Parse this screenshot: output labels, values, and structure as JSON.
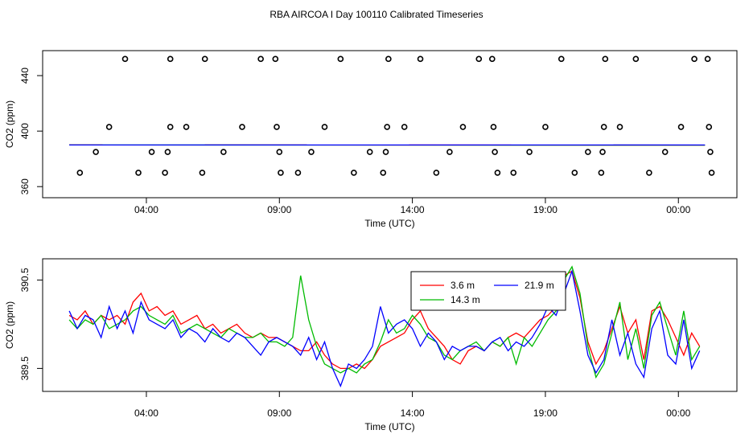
{
  "title": "RBA AIRCOA I  Day 100110  Calibrated Timeseries",
  "colors": {
    "red": "#ff0000",
    "green": "#00bb00",
    "blue": "#0000ff",
    "black": "#000000"
  },
  "chart_data": [
    {
      "type": "scatter",
      "id": "top",
      "xlabel": "Time (UTC)",
      "ylabel": "CO2 (ppm)",
      "xlim": [
        -0.9,
        25.2
      ],
      "ylim": [
        352,
        458
      ],
      "xticks": [
        3,
        8,
        13,
        18,
        23
      ],
      "xtick_labels": [
        "04:00",
        "09:00",
        "14:00",
        "19:00",
        "00:00"
      ],
      "yticks": [
        360,
        400,
        440
      ],
      "ytick_labels": [
        "360",
        "400",
        "440"
      ],
      "grid": false,
      "calibration_points": [
        [
          0.5,
          370
        ],
        [
          1.1,
          385
        ],
        [
          1.6,
          403
        ],
        [
          2.2,
          452
        ],
        [
          2.7,
          370
        ],
        [
          3.2,
          385
        ],
        [
          3.7,
          370
        ],
        [
          3.8,
          385
        ],
        [
          3.9,
          403
        ],
        [
          3.9,
          452
        ],
        [
          4.5,
          403
        ],
        [
          5.1,
          370
        ],
        [
          5.2,
          452
        ],
        [
          5.9,
          385
        ],
        [
          6.6,
          403
        ],
        [
          7.3,
          452
        ],
        [
          7.85,
          452
        ],
        [
          7.9,
          403
        ],
        [
          8.0,
          385
        ],
        [
          8.05,
          370
        ],
        [
          8.7,
          370
        ],
        [
          9.2,
          385
        ],
        [
          9.7,
          403
        ],
        [
          10.3,
          452
        ],
        [
          10.8,
          370
        ],
        [
          11.4,
          385
        ],
        [
          11.9,
          370
        ],
        [
          12.0,
          385
        ],
        [
          12.05,
          403
        ],
        [
          12.1,
          452
        ],
        [
          12.7,
          403
        ],
        [
          13.3,
          452
        ],
        [
          13.9,
          370
        ],
        [
          14.4,
          385
        ],
        [
          14.9,
          403
        ],
        [
          15.5,
          452
        ],
        [
          16.0,
          452
        ],
        [
          16.05,
          403
        ],
        [
          16.1,
          385
        ],
        [
          16.2,
          370
        ],
        [
          16.8,
          370
        ],
        [
          17.4,
          385
        ],
        [
          18.0,
          403
        ],
        [
          18.6,
          452
        ],
        [
          19.1,
          370
        ],
        [
          19.6,
          385
        ],
        [
          20.1,
          370
        ],
        [
          20.15,
          385
        ],
        [
          20.2,
          403
        ],
        [
          20.25,
          452
        ],
        [
          20.8,
          403
        ],
        [
          21.4,
          452
        ],
        [
          21.9,
          370
        ],
        [
          22.5,
          385
        ],
        [
          23.1,
          403
        ],
        [
          23.6,
          452
        ],
        [
          24.1,
          452
        ],
        [
          24.15,
          403
        ],
        [
          24.2,
          385
        ],
        [
          24.25,
          370
        ]
      ],
      "series": [
        {
          "name": "3.6 m",
          "color": "#ff0000",
          "x": [
            0.1,
            24.0
          ],
          "y": [
            390.1,
            389.9
          ]
        },
        {
          "name": "14.3 m",
          "color": "#00bb00",
          "x": [
            0.1,
            24.0
          ],
          "y": [
            390.0,
            389.9
          ]
        },
        {
          "name": "21.9 m",
          "color": "#0000ff",
          "x": [
            0.1,
            24.0
          ],
          "y": [
            390.0,
            390.0
          ]
        }
      ]
    },
    {
      "type": "line",
      "id": "bottom",
      "xlabel": "Time (UTC)",
      "ylabel": "CO2 (ppm)",
      "xlim": [
        -0.9,
        25.2
      ],
      "ylim": [
        389.24,
        390.74
      ],
      "xticks": [
        3,
        8,
        13,
        18,
        23
      ],
      "xtick_labels": [
        "04:00",
        "09:00",
        "14:00",
        "19:00",
        "00:00"
      ],
      "yticks": [
        389.5,
        390.5
      ],
      "ytick_labels": [
        "389.5",
        "390.5"
      ],
      "grid": false,
      "legend": {
        "position": "top-center",
        "entries": [
          "3.6 m",
          "14.3 m",
          "21.9 m"
        ]
      },
      "series": [
        {
          "name": "3.6 m",
          "color": "#ff0000",
          "x": [
            0.1,
            0.4,
            0.7,
            1.0,
            1.3,
            1.6,
            1.9,
            2.2,
            2.5,
            2.8,
            3.1,
            3.4,
            3.7,
            4.0,
            4.3,
            4.6,
            4.9,
            5.2,
            5.5,
            5.8,
            6.1,
            6.4,
            6.7,
            7.0,
            7.3,
            7.6,
            7.9,
            8.2,
            8.5,
            8.8,
            9.1,
            9.4,
            9.7,
            10.0,
            10.3,
            10.6,
            10.9,
            11.2,
            11.5,
            11.8,
            12.1,
            12.4,
            12.7,
            13.0,
            13.3,
            13.6,
            13.9,
            14.2,
            14.5,
            14.8,
            15.1,
            15.4,
            15.7,
            16.0,
            16.3,
            16.6,
            16.9,
            17.2,
            17.5,
            17.8,
            18.1,
            18.4,
            18.7,
            19.0,
            19.3,
            19.6,
            19.9,
            20.2,
            20.5,
            20.8,
            21.1,
            21.4,
            21.7,
            22.0,
            22.3,
            22.6,
            22.9,
            23.2,
            23.5,
            23.8
          ],
          "y": [
            390.1,
            390.05,
            390.15,
            390.0,
            390.1,
            390.05,
            390.1,
            390.0,
            390.25,
            390.35,
            390.15,
            390.2,
            390.1,
            390.15,
            390.0,
            390.05,
            390.1,
            389.95,
            390.0,
            389.9,
            389.95,
            390.0,
            389.9,
            389.85,
            389.9,
            389.85,
            389.85,
            389.8,
            389.75,
            389.7,
            389.7,
            389.8,
            389.65,
            389.55,
            389.5,
            389.5,
            389.55,
            389.5,
            389.6,
            389.75,
            389.8,
            389.85,
            389.9,
            390.05,
            390.15,
            389.95,
            389.85,
            389.75,
            389.6,
            389.55,
            389.7,
            389.75,
            389.7,
            389.8,
            389.75,
            389.85,
            389.9,
            389.85,
            389.95,
            390.05,
            390.1,
            390.2,
            390.55,
            390.6,
            390.3,
            389.8,
            389.55,
            389.7,
            389.95,
            390.2,
            389.9,
            390.05,
            389.6,
            390.15,
            390.2,
            390.05,
            389.85,
            389.65,
            389.9,
            389.75
          ]
        },
        {
          "name": "14.3 m",
          "color": "#00bb00",
          "x": [
            0.1,
            0.4,
            0.7,
            1.0,
            1.3,
            1.6,
            1.9,
            2.2,
            2.5,
            2.8,
            3.1,
            3.4,
            3.7,
            4.0,
            4.3,
            4.6,
            4.9,
            5.2,
            5.5,
            5.8,
            6.1,
            6.4,
            6.7,
            7.0,
            7.3,
            7.6,
            7.9,
            8.2,
            8.5,
            8.8,
            9.1,
            9.4,
            9.7,
            10.0,
            10.3,
            10.6,
            10.9,
            11.2,
            11.5,
            11.8,
            12.1,
            12.4,
            12.7,
            13.0,
            13.3,
            13.6,
            13.9,
            14.2,
            14.5,
            14.8,
            15.1,
            15.4,
            15.7,
            16.0,
            16.3,
            16.6,
            16.9,
            17.2,
            17.5,
            17.8,
            18.1,
            18.4,
            18.7,
            19.0,
            19.3,
            19.6,
            19.9,
            20.2,
            20.5,
            20.8,
            21.1,
            21.4,
            21.7,
            22.0,
            22.3,
            22.6,
            22.9,
            23.2,
            23.5,
            23.8
          ],
          "y": [
            390.05,
            389.95,
            390.05,
            390.0,
            390.1,
            389.95,
            390.0,
            390.05,
            390.15,
            390.2,
            390.1,
            390.05,
            390.0,
            390.1,
            389.9,
            389.95,
            390.0,
            389.95,
            389.9,
            389.85,
            389.95,
            389.9,
            389.85,
            389.85,
            389.9,
            389.8,
            389.8,
            389.75,
            389.85,
            390.55,
            390.05,
            389.75,
            389.55,
            389.5,
            389.45,
            389.5,
            389.45,
            389.55,
            389.6,
            389.8,
            390.05,
            389.9,
            389.95,
            390.1,
            390.0,
            389.85,
            389.8,
            389.65,
            389.6,
            389.7,
            389.75,
            389.8,
            389.7,
            389.8,
            389.75,
            389.85,
            389.55,
            389.85,
            389.75,
            389.9,
            390.05,
            390.15,
            390.5,
            390.65,
            390.35,
            389.75,
            389.4,
            389.55,
            389.9,
            390.25,
            389.6,
            389.95,
            389.5,
            390.1,
            390.25,
            389.95,
            389.65,
            390.15,
            389.6,
            389.75
          ]
        },
        {
          "name": "21.9 m",
          "color": "#0000ff",
          "x": [
            0.1,
            0.4,
            0.7,
            1.0,
            1.3,
            1.6,
            1.9,
            2.2,
            2.5,
            2.8,
            3.1,
            3.4,
            3.7,
            4.0,
            4.3,
            4.6,
            4.9,
            5.2,
            5.5,
            5.8,
            6.1,
            6.4,
            6.7,
            7.0,
            7.3,
            7.6,
            7.9,
            8.2,
            8.5,
            8.8,
            9.1,
            9.4,
            9.7,
            10.0,
            10.3,
            10.6,
            10.9,
            11.2,
            11.5,
            11.8,
            12.1,
            12.4,
            12.7,
            13.0,
            13.3,
            13.6,
            13.9,
            14.2,
            14.5,
            14.8,
            15.1,
            15.4,
            15.7,
            16.0,
            16.3,
            16.6,
            16.9,
            17.2,
            17.5,
            17.8,
            18.1,
            18.4,
            18.7,
            19.0,
            19.3,
            19.6,
            19.9,
            20.2,
            20.5,
            20.8,
            21.1,
            21.4,
            21.7,
            22.0,
            22.3,
            22.6,
            22.9,
            23.2,
            23.5,
            23.8
          ],
          "y": [
            390.15,
            389.95,
            390.1,
            390.05,
            389.85,
            390.2,
            389.95,
            390.15,
            389.9,
            390.25,
            390.05,
            390.0,
            389.95,
            390.05,
            389.85,
            389.95,
            389.9,
            389.8,
            389.95,
            389.85,
            389.8,
            389.9,
            389.85,
            389.75,
            389.65,
            389.8,
            389.85,
            389.8,
            389.75,
            389.65,
            389.85,
            389.6,
            389.8,
            389.5,
            389.3,
            389.55,
            389.5,
            389.6,
            389.75,
            390.2,
            389.9,
            390.0,
            390.05,
            389.95,
            389.75,
            389.9,
            389.8,
            389.6,
            389.75,
            389.7,
            389.75,
            389.75,
            389.7,
            389.8,
            389.85,
            389.7,
            389.8,
            389.75,
            389.85,
            390.0,
            390.2,
            390.1,
            390.35,
            390.6,
            390.15,
            389.65,
            389.45,
            389.6,
            390.05,
            389.65,
            389.9,
            389.55,
            389.4,
            389.95,
            390.15,
            389.65,
            389.55,
            390.05,
            389.5,
            389.7
          ]
        }
      ]
    }
  ]
}
